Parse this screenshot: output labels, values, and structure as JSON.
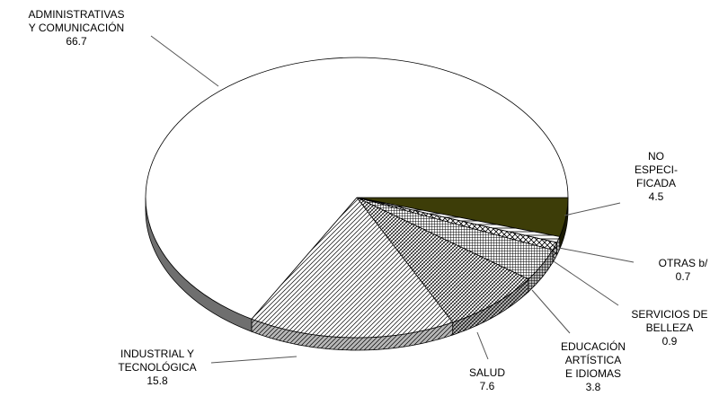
{
  "chart_data": {
    "type": "pie",
    "style": "3d-exploded-free",
    "start_angle_deg": 0,
    "direction": "clockwise",
    "slices": [
      {
        "key": "no-especificada",
        "label_lines": [
          "NO",
          "ESPECI-",
          "FICADA"
        ],
        "value": 4.5,
        "value_label": "4.5",
        "fill": "#3d3d08",
        "pattern": "solid"
      },
      {
        "key": "otras",
        "label_lines": [
          "OTRAS b/"
        ],
        "value": 0.7,
        "value_label": "0.7",
        "fill": "#ffffff",
        "pattern": "stripes"
      },
      {
        "key": "servicios-de-belleza",
        "label_lines": [
          "SERVICIOS DE",
          "BELLEZA"
        ],
        "value": 0.9,
        "value_label": "0.9",
        "fill": "#ffffff",
        "pattern": "crosshatch"
      },
      {
        "key": "educacion-artistica-e-idiomas",
        "label_lines": [
          "EDUCACIÓN",
          "ARTÍSTICA",
          "E IDIOMAS"
        ],
        "value": 3.8,
        "value_label": "3.8",
        "fill": "#ffffff",
        "pattern": "grid-dense"
      },
      {
        "key": "salud",
        "label_lines": [
          "SALUD"
        ],
        "value": 7.6,
        "value_label": "7.6",
        "fill": "#ffffff",
        "pattern": "vertical-hatch"
      },
      {
        "key": "industrial-y-tecnologica",
        "label_lines": [
          "INDUSTRIAL Y",
          "TECNOLÓGICA"
        ],
        "value": 15.8,
        "value_label": "15.8",
        "fill": "#ffffff",
        "pattern": "diagonal"
      },
      {
        "key": "administrativas-y-comunicacion",
        "label_lines": [
          "ADMINISTRATIVAS",
          "Y COMUNICACIÓN"
        ],
        "value": 66.7,
        "value_label": "66.7",
        "fill": "#ffffff",
        "pattern": "plain"
      }
    ]
  }
}
